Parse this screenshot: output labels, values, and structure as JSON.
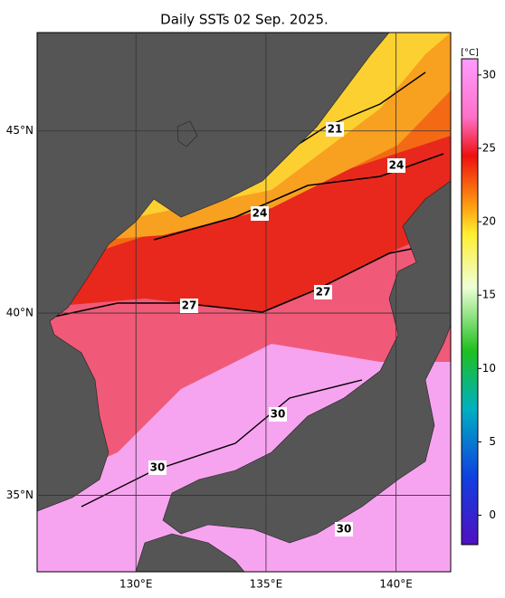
{
  "title": "Daily SSTs 02 Sep. 2025.",
  "map": {
    "xlim": [
      126.2,
      142.1
    ],
    "ylim": [
      32.9,
      47.7
    ],
    "xticks": [
      {
        "value": 130,
        "label": "130°E"
      },
      {
        "value": 135,
        "label": "135°E"
      },
      {
        "value": 140,
        "label": "140°E"
      }
    ],
    "yticks": [
      {
        "value": 35,
        "label": "35°N"
      },
      {
        "value": 40,
        "label": "40°N"
      },
      {
        "value": 45,
        "label": "45°N"
      }
    ]
  },
  "colorbar": {
    "unit": "[°C]",
    "clim": [
      -2,
      31.1
    ],
    "ticks": [
      0,
      5,
      10,
      15,
      20,
      25,
      30
    ]
  },
  "contour_labels": [
    21,
    24,
    24,
    27,
    27,
    30,
    30,
    30
  ]
}
